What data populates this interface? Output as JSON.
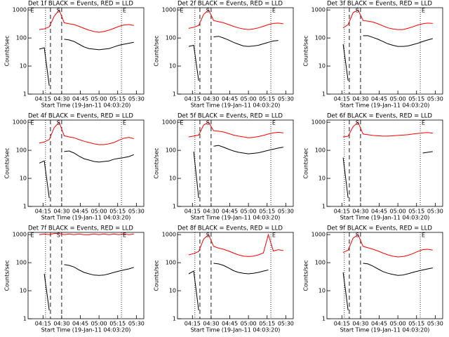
{
  "chart_data": [
    {
      "type": "line",
      "title": "Det 1f BLACK = Events, RED = LLD",
      "xlabel": "Start Time (19-Jan-11 04:03:20)",
      "ylabel": "Counts/sec",
      "log_y": true,
      "xlim": [
        "04:03",
        "05:36"
      ],
      "xticks": [
        "04:15",
        "04:30",
        "04:45",
        "05:00",
        "05:15",
        "05:30"
      ],
      "ylim": [
        1,
        1200
      ],
      "yticks": [
        1,
        10,
        100,
        1000
      ],
      "x": [
        "04:12",
        "04:16",
        "04:20",
        "04:24",
        "04:28",
        "04:32",
        "04:36",
        "04:40",
        "04:44",
        "04:48",
        "04:52",
        "04:56",
        "05:00",
        "05:04",
        "05:08",
        "05:12",
        "05:16",
        "05:20",
        "05:24",
        "05:28"
      ],
      "series": [
        {
          "name": "Events",
          "color": "#000000",
          "values": [
            40,
            45,
            2,
            null,
            null,
            90,
            85,
            75,
            60,
            48,
            42,
            40,
            38,
            40,
            42,
            48,
            55,
            60,
            65,
            70
          ]
        },
        {
          "name": "LLD",
          "color": "#ff0000",
          "values": [
            200,
            210,
            250,
            600,
            1000,
            350,
            320,
            300,
            260,
            220,
            190,
            170,
            160,
            170,
            190,
            220,
            260,
            290,
            300,
            280
          ]
        }
      ],
      "dotted_lines": [
        "04:17",
        "05:18"
      ],
      "dashed_lines": [
        "04:21",
        "04:30"
      ],
      "annotations": [
        {
          "text": "E",
          "x": "04:05"
        },
        {
          "text": "S",
          "x": "04:26"
        },
        {
          "text": "E",
          "x": "05:19"
        }
      ]
    },
    {
      "type": "line",
      "title": "Det 2f BLACK = Events, RED = LLD",
      "xlabel": "Start Time (19-Jan-11 04:03:20)",
      "ylabel": "Counts/sec",
      "log_y": true,
      "xlim": [
        "04:03",
        "05:36"
      ],
      "xticks": [
        "04:15",
        "04:30",
        "04:45",
        "05:00",
        "05:15",
        "05:30"
      ],
      "ylim": [
        1,
        1200
      ],
      "yticks": [
        1,
        10,
        100,
        1000
      ],
      "x": [
        "04:12",
        "04:16",
        "04:20",
        "04:24",
        "04:28",
        "04:32",
        "04:36",
        "04:40",
        "04:44",
        "04:48",
        "04:52",
        "04:56",
        "05:00",
        "05:04",
        "05:08",
        "05:12",
        "05:16",
        "05:20",
        "05:24",
        "05:28"
      ],
      "series": [
        {
          "name": "Events",
          "color": "#000000",
          "values": [
            50,
            55,
            3,
            null,
            null,
            110,
            115,
            100,
            85,
            70,
            60,
            52,
            50,
            52,
            55,
            62,
            70,
            78,
            82,
            null
          ]
        },
        {
          "name": "LLD",
          "color": "#ff0000",
          "values": [
            220,
            240,
            280,
            700,
            1000,
            420,
            380,
            350,
            300,
            260,
            230,
            210,
            200,
            210,
            230,
            260,
            300,
            330,
            340,
            320
          ]
        }
      ],
      "dotted_lines": [
        "04:17",
        "05:18"
      ],
      "dashed_lines": [
        "04:21",
        "04:30"
      ],
      "annotations": [
        {
          "text": "E",
          "x": "04:05"
        },
        {
          "text": "S",
          "x": "04:26"
        },
        {
          "text": "E",
          "x": "05:19"
        }
      ]
    },
    {
      "type": "line",
      "title": "Det 3f BLACK = Events, RED = LLD",
      "xlabel": "Start Time (19-Jan-11 04:03:20)",
      "ylabel": "Counts/sec",
      "log_y": true,
      "xlim": [
        "04:03",
        "05:36"
      ],
      "xticks": [
        "04:15",
        "04:30",
        "04:45",
        "05:00",
        "05:15",
        "05:30"
      ],
      "ylim": [
        1,
        1200
      ],
      "yticks": [
        1,
        10,
        100,
        1000
      ],
      "x": [
        "04:12",
        "04:16",
        "04:20",
        "04:24",
        "04:28",
        "04:32",
        "04:36",
        "04:40",
        "04:44",
        "04:48",
        "04:52",
        "04:56",
        "05:00",
        "05:04",
        "05:08",
        "05:12",
        "05:16",
        "05:20",
        "05:24",
        "05:28"
      ],
      "series": [
        {
          "name": "Events",
          "color": "#000000",
          "values": [
            null,
            60,
            3,
            null,
            null,
            120,
            120,
            105,
            90,
            75,
            62,
            55,
            50,
            50,
            52,
            58,
            65,
            75,
            85,
            95
          ]
        },
        {
          "name": "LLD",
          "color": "#ff0000",
          "values": [
            null,
            230,
            300,
            800,
            1000,
            420,
            400,
            370,
            320,
            270,
            230,
            210,
            200,
            200,
            220,
            250,
            290,
            320,
            340,
            330
          ]
        }
      ],
      "dotted_lines": [
        "04:17",
        "05:18"
      ],
      "dashed_lines": [
        "04:21",
        "04:30"
      ],
      "annotations": [
        {
          "text": "S",
          "x": "04:26"
        },
        {
          "text": "E",
          "x": "05:19"
        }
      ]
    },
    {
      "type": "line",
      "title": "Det 4f BLACK = Events, RED = LLD",
      "xlabel": "Start Time (19-Jan-11 04:03:20)",
      "ylabel": "Counts/sec",
      "log_y": true,
      "xlim": [
        "04:03",
        "05:36"
      ],
      "xticks": [
        "04:15",
        "04:30",
        "04:45",
        "05:00",
        "05:15",
        "05:30"
      ],
      "ylim": [
        1,
        1200
      ],
      "yticks": [
        1,
        10,
        100,
        1000
      ],
      "x": [
        "04:12",
        "04:16",
        "04:20",
        "04:24",
        "04:28",
        "04:32",
        "04:36",
        "04:40",
        "04:44",
        "04:48",
        "04:52",
        "04:56",
        "05:00",
        "05:04",
        "05:08",
        "05:12",
        "05:16",
        "05:20",
        "05:24",
        "05:28"
      ],
      "series": [
        {
          "name": "Events",
          "color": "#000000",
          "values": [
            35,
            42,
            2,
            null,
            null,
            90,
            95,
            80,
            62,
            50,
            45,
            40,
            38,
            40,
            42,
            48,
            52,
            55,
            60,
            70
          ]
        },
        {
          "name": "LLD",
          "color": "#ff0000",
          "values": [
            180,
            200,
            240,
            650,
            1000,
            330,
            300,
            280,
            240,
            210,
            190,
            170,
            160,
            160,
            170,
            190,
            230,
            270,
            290,
            260
          ]
        }
      ],
      "dotted_lines": [
        "04:17",
        "05:18"
      ],
      "dashed_lines": [
        "04:21",
        "04:30"
      ],
      "annotations": [
        {
          "text": "E",
          "x": "04:05"
        },
        {
          "text": "S",
          "x": "04:26"
        },
        {
          "text": "E",
          "x": "05:19"
        }
      ]
    },
    {
      "type": "line",
      "title": "Det 5f BLACK = Events, RED = LLD",
      "xlabel": "Start Time (19-Jan-11 04:03:20)",
      "ylabel": "Counts/sec",
      "log_y": true,
      "xlim": [
        "04:03",
        "05:36"
      ],
      "xticks": [
        "04:15",
        "04:30",
        "04:45",
        "05:00",
        "05:15",
        "05:30"
      ],
      "ylim": [
        1,
        1200
      ],
      "yticks": [
        1,
        10,
        100,
        1000
      ],
      "x": [
        "04:12",
        "04:16",
        "04:20",
        "04:24",
        "04:28",
        "04:32",
        "04:36",
        "04:40",
        "04:44",
        "04:48",
        "04:52",
        "04:56",
        "05:00",
        "05:04",
        "05:08",
        "05:12",
        "05:16",
        "05:20",
        "05:24",
        "05:28"
      ],
      "series": [
        {
          "name": "Events",
          "color": "#000000",
          "values": [
            null,
            90,
            2,
            null,
            null,
            140,
            150,
            130,
            110,
            95,
            85,
            80,
            75,
            78,
            82,
            90,
            100,
            110,
            120,
            130
          ]
        },
        {
          "name": "LLD",
          "color": "#ff0000",
          "values": [
            300,
            320,
            350,
            800,
            1000,
            500,
            480,
            450,
            400,
            350,
            320,
            300,
            280,
            290,
            310,
            340,
            380,
            420,
            440,
            420
          ]
        }
      ],
      "dotted_lines": [
        "04:17",
        "05:18"
      ],
      "dashed_lines": [
        "04:21",
        "04:30"
      ],
      "annotations": [
        {
          "text": "E",
          "x": "04:05"
        },
        {
          "text": "S",
          "x": "04:26"
        },
        {
          "text": "E",
          "x": "05:19"
        }
      ]
    },
    {
      "type": "line",
      "title": "Det 6f BLACK = Events, RED = LLD",
      "xlabel": "Start Time (19-Jan-11 04:03:20)",
      "ylabel": "Counts/sec",
      "log_y": true,
      "xlim": [
        "04:03",
        "05:36"
      ],
      "xticks": [
        "04:15",
        "04:30",
        "04:45",
        "05:00",
        "05:15",
        "05:30"
      ],
      "ylim": [
        1,
        1200
      ],
      "yticks": [
        1,
        10,
        100,
        1000
      ],
      "x": [
        "04:12",
        "04:16",
        "04:20",
        "04:24",
        "04:28",
        "04:32",
        "04:36",
        "04:40",
        "04:44",
        "04:48",
        "04:52",
        "04:56",
        "05:00",
        "05:04",
        "05:08",
        "05:12",
        "05:16",
        "05:20",
        "05:24",
        "05:28"
      ],
      "series": [
        {
          "name": "Events",
          "color": "#000000",
          "values": [
            null,
            55,
            2,
            null,
            null,
            null,
            null,
            null,
            null,
            null,
            null,
            null,
            null,
            null,
            null,
            null,
            null,
            80,
            85,
            90
          ]
        },
        {
          "name": "LLD",
          "color": "#ff0000",
          "values": [
            null,
            300,
            320,
            700,
            1000,
            380,
            360,
            340,
            330,
            320,
            320,
            330,
            340,
            350,
            360,
            380,
            400,
            420,
            430,
            410
          ]
        }
      ],
      "dotted_lines": [
        "04:17",
        "05:18"
      ],
      "dashed_lines": [
        "04:21",
        "04:30"
      ],
      "annotations": [
        {
          "text": "S",
          "x": "04:26"
        },
        {
          "text": "E",
          "x": "05:19"
        }
      ]
    },
    {
      "type": "line",
      "title": "Det 7f BLACK = Events, RED = LLD",
      "xlabel": "Start Time (19-Jan-11 04:03:20)",
      "ylabel": "Counts/sec",
      "log_y": true,
      "xlim": [
        "04:03",
        "05:36"
      ],
      "xticks": [
        "04:15",
        "04:30",
        "04:45",
        "05:00",
        "05:15",
        "05:30"
      ],
      "ylim": [
        1,
        1200
      ],
      "yticks": [
        1,
        10,
        100,
        1000
      ],
      "x": [
        "04:12",
        "04:16",
        "04:20",
        "04:24",
        "04:28",
        "04:32",
        "04:36",
        "04:40",
        "04:44",
        "04:48",
        "04:52",
        "04:56",
        "05:00",
        "05:04",
        "05:08",
        "05:12",
        "05:16",
        "05:20",
        "05:24",
        "05:28"
      ],
      "series": [
        {
          "name": "Events",
          "color": "#000000",
          "values": [
            null,
            40,
            2,
            null,
            null,
            85,
            80,
            70,
            55,
            45,
            40,
            36,
            35,
            36,
            40,
            45,
            50,
            55,
            60,
            68
          ]
        },
        {
          "name": "LLD",
          "color": "#ff0000",
          "values": [
            1000,
            1050,
            1000,
            1100,
            1100,
            1000,
            1050,
            1000,
            1050,
            1000,
            1000,
            1050,
            1000,
            1050,
            1000,
            1050,
            1000,
            1050,
            1000,
            1050
          ]
        }
      ],
      "dotted_lines": [
        "04:17",
        "05:18"
      ],
      "dashed_lines": [
        "04:21",
        "04:30"
      ],
      "annotations": [
        {
          "text": "E",
          "x": "04:05"
        },
        {
          "text": "S",
          "x": "04:26"
        },
        {
          "text": "E",
          "x": "05:19"
        }
      ]
    },
    {
      "type": "line",
      "title": "Det 8f BLACK = Events, RED = LLD",
      "xlabel": "Start Time (19-Jan-11 04:03:20)",
      "ylabel": "Counts/sec",
      "log_y": true,
      "xlim": [
        "04:03",
        "05:36"
      ],
      "xticks": [
        "04:15",
        "04:30",
        "04:45",
        "05:00",
        "05:15",
        "05:30"
      ],
      "ylim": [
        1,
        1200
      ],
      "yticks": [
        1,
        10,
        100,
        1000
      ],
      "x": [
        "04:12",
        "04:16",
        "04:20",
        "04:24",
        "04:28",
        "04:32",
        "04:36",
        "04:40",
        "04:44",
        "04:48",
        "04:52",
        "04:56",
        "05:00",
        "05:04",
        "05:08",
        "05:12",
        "05:16",
        "05:20",
        "05:24",
        "05:28"
      ],
      "series": [
        {
          "name": "Events",
          "color": "#000000",
          "values": [
            40,
            50,
            2,
            null,
            null,
            95,
            90,
            80,
            65,
            52,
            45,
            42,
            40,
            42,
            45,
            50,
            55,
            null,
            null,
            null
          ]
        },
        {
          "name": "LLD",
          "color": "#ff0000",
          "values": [
            190,
            210,
            250,
            700,
            1000,
            380,
            330,
            300,
            260,
            220,
            190,
            170,
            165,
            170,
            190,
            220,
            1000,
            260,
            290,
            270
          ]
        }
      ],
      "dotted_lines": [
        "04:17",
        "05:18"
      ],
      "dashed_lines": [
        "04:21",
        "04:30"
      ],
      "annotations": [
        {
          "text": "S",
          "x": "04:26"
        },
        {
          "text": "E",
          "x": "05:19"
        }
      ]
    },
    {
      "type": "line",
      "title": "Det 9f BLACK = Events, RED = LLD",
      "xlabel": "Start Time (19-Jan-11 04:03:20)",
      "ylabel": "Counts/sec",
      "log_y": true,
      "xlim": [
        "04:03",
        "05:36"
      ],
      "xticks": [
        "04:15",
        "04:30",
        "04:45",
        "05:00",
        "05:15",
        "05:30"
      ],
      "ylim": [
        1,
        1200
      ],
      "yticks": [
        1,
        10,
        100,
        1000
      ],
      "x": [
        "04:12",
        "04:16",
        "04:20",
        "04:24",
        "04:28",
        "04:32",
        "04:36",
        "04:40",
        "04:44",
        "04:48",
        "04:52",
        "04:56",
        "05:00",
        "05:04",
        "05:08",
        "05:12",
        "05:16",
        "05:20",
        "05:24",
        "05:28"
      ],
      "series": [
        {
          "name": "Events",
          "color": "#000000",
          "values": [
            null,
            45,
            2,
            null,
            null,
            95,
            90,
            75,
            60,
            48,
            42,
            38,
            35,
            36,
            40,
            45,
            50,
            55,
            60,
            65
          ]
        },
        {
          "name": "LLD",
          "color": "#ff0000",
          "values": [
            null,
            230,
            280,
            750,
            1000,
            380,
            340,
            300,
            260,
            220,
            190,
            170,
            160,
            165,
            180,
            210,
            250,
            290,
            300,
            280
          ]
        }
      ],
      "dotted_lines": [
        "04:17",
        "05:18"
      ],
      "dashed_lines": [
        "04:21",
        "04:30"
      ],
      "annotations": [
        {
          "text": "S",
          "x": "04:26"
        },
        {
          "text": "E",
          "x": "05:19"
        }
      ]
    }
  ]
}
